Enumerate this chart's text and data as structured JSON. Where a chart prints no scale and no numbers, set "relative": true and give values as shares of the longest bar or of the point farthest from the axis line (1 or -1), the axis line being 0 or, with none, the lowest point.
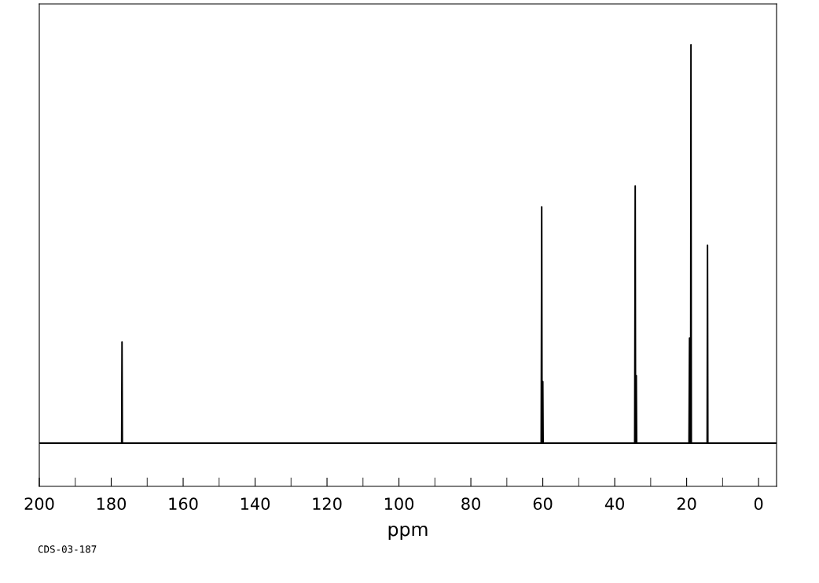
{
  "chart_data": {
    "type": "line",
    "relative": true,
    "xlabel": "ppm",
    "x": [
      200,
      177.1,
      177.0,
      176.9,
      60.45,
      60.3,
      60.2,
      60.1,
      60.0,
      59.9,
      34.45,
      34.3,
      34.2,
      34.1,
      34.0,
      33.9,
      19.35,
      19.2,
      19.1,
      18.9,
      18.8,
      18.7,
      14.3,
      14.2,
      14.1,
      -5
    ],
    "series": [
      {
        "color": "#000000",
        "values": [
          0.098,
          0.098,
          0.327,
          0.098,
          0.098,
          0.633,
          0.098,
          0.098,
          0.237,
          0.098,
          0.098,
          0.68,
          0.098,
          0.098,
          0.251,
          0.098,
          0.098,
          0.336,
          0.098,
          0.098,
          1.0,
          0.098,
          0.098,
          0.546,
          0.098,
          0.098
        ]
      }
    ],
    "xlim": [
      200,
      -5
    ],
    "xticks": [
      200,
      {
        "value": 190,
        "label": null
      },
      180,
      {
        "value": 170,
        "label": null
      },
      160,
      {
        "value": 150,
        "label": null
      },
      140,
      {
        "value": 130,
        "label": null
      },
      120,
      {
        "value": 110,
        "label": null
      },
      100,
      {
        "value": 90,
        "label": null
      },
      80,
      {
        "value": 70,
        "label": null
      },
      60,
      {
        "value": 50,
        "label": null
      },
      40,
      {
        "value": 30,
        "label": null
      },
      20,
      {
        "value": 10,
        "label": null
      },
      0
    ],
    "grid": false,
    "marker": "none",
    "line_style": "solid",
    "annotations": [
      "CDS-03-187"
    ]
  }
}
